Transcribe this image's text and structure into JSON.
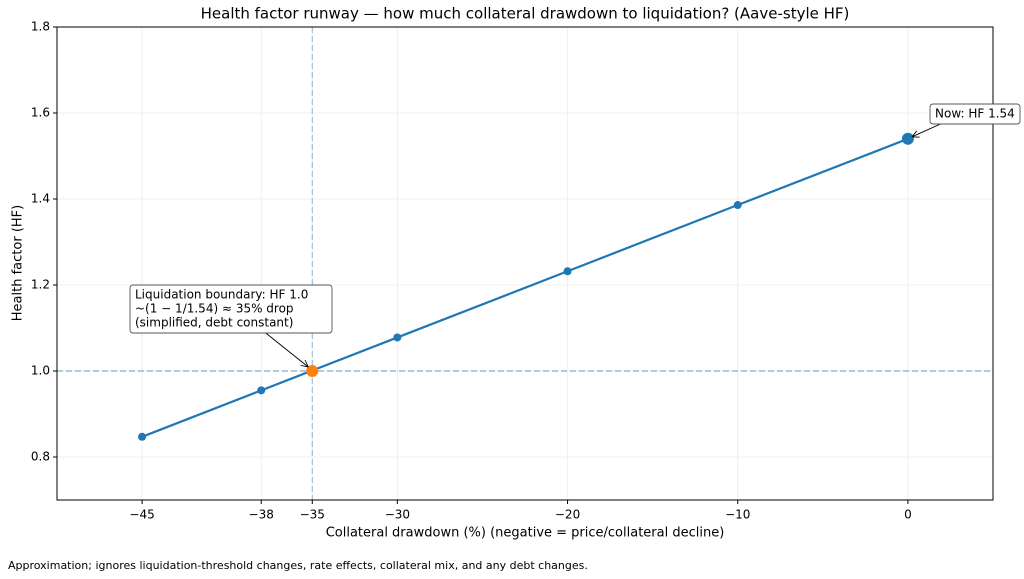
{
  "chart_data": {
    "type": "line",
    "title": "Health factor runway — how much collateral drawdown to liquidation? (Aave-style HF)",
    "x_label": "Collateral drawdown (%)  (negative = price/collateral decline)",
    "y_label": "Health factor (HF)",
    "x": [
      -45,
      -38,
      -30,
      -20,
      -10,
      0
    ],
    "values": [
      0.847,
      0.955,
      1.078,
      1.232,
      1.386,
      1.54
    ],
    "color": "#1f77b4",
    "highlights": [
      {
        "x": -35,
        "y": 1.0,
        "color": "#ff7f0e"
      },
      {
        "x": 0,
        "y": 1.54,
        "color": "#1f77b4"
      }
    ],
    "hline": 1.0,
    "vline": -35,
    "xlim": [
      -50,
      5
    ],
    "xticks": [
      {
        "value": -45,
        "label": "−45"
      },
      {
        "value": -38,
        "label": "−38"
      },
      {
        "value": -35,
        "label": "−35"
      },
      {
        "value": -30,
        "label": "−30"
      },
      {
        "value": -20,
        "label": "−20"
      },
      {
        "value": -10,
        "label": "−10"
      },
      0
    ],
    "ylim": [
      0.7,
      1.8
    ],
    "yticks": [
      0.8,
      {
        "value": 1.0,
        "label": "1.0"
      },
      1.2,
      1.4,
      1.6,
      1.8
    ],
    "grid": true,
    "annotations": [
      {
        "lines": [
          "Liquidation boundary: HF 1.0",
          "~(1 − 1/1.54) ≈ 35% drop",
          "(simplified, debt constant)"
        ],
        "x": -35,
        "y": 1.0
      },
      {
        "lines": [
          "Now: HF 1.54"
        ],
        "x": 0,
        "y": 1.54
      }
    ],
    "footnote": "Approximation; ignores liquidation-threshold changes, rate effects, collateral mix, and any debt changes."
  }
}
